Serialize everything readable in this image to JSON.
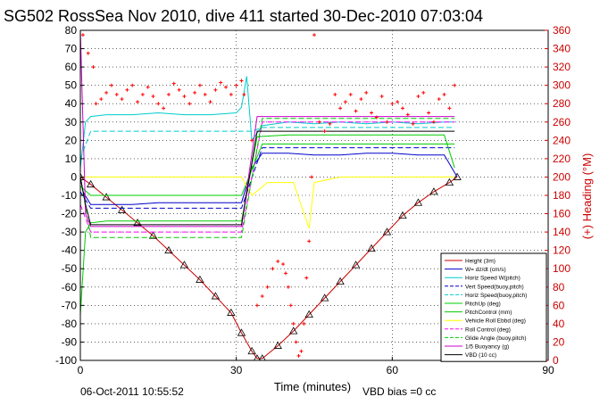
{
  "chart_data": {
    "type": "line",
    "title": "SG502 RossSea Nov 2010, dive 411 started 30-Dec-2010 07:03:04",
    "xlabel": "Time (minutes)",
    "ylabel_right": "(+) Heading (°M)",
    "xlim": [
      0,
      90
    ],
    "ylim": [
      -100,
      80
    ],
    "ylim_right": [
      0,
      360
    ],
    "x_ticks": [
      0,
      30,
      60,
      90
    ],
    "y_ticks": [
      -100,
      -90,
      -80,
      -70,
      -60,
      -50,
      -40,
      -30,
      -20,
      -10,
      0,
      10,
      20,
      30,
      40,
      50,
      60,
      70,
      80
    ],
    "y_ticks_right": [
      0,
      20,
      40,
      60,
      80,
      100,
      120,
      140,
      160,
      180,
      200,
      220,
      240,
      260,
      280,
      300,
      320,
      340,
      360
    ],
    "grid": true,
    "legend_position": "bottom-right",
    "footer_left": "06-Oct-2011 10:55:52",
    "footer_right": "VBD bias =0 cc",
    "series": [
      {
        "name": "Height (3m)",
        "color": "#cc0000",
        "style": "solid-triangle-markers",
        "x": [
          0,
          2,
          5,
          8,
          11,
          14,
          17,
          20,
          23,
          26,
          29,
          31,
          33,
          34,
          35,
          38,
          41,
          44,
          47,
          50,
          53,
          56,
          59,
          62,
          65,
          68,
          71,
          72.5
        ],
        "values": [
          0,
          -4,
          -11,
          -18,
          -25,
          -32,
          -40,
          -48,
          -56,
          -65,
          -74,
          -85,
          -95,
          -99,
          -99,
          -92,
          -84,
          -75,
          -66,
          -57,
          -48,
          -39,
          -30,
          -21,
          -14,
          -8,
          -3,
          0
        ]
      },
      {
        "name": "W= dz/dt (cm/s)",
        "color": "#0000cc",
        "style": "solid",
        "x": [
          0,
          0.5,
          2,
          5,
          10,
          15,
          20,
          25,
          31,
          33,
          35,
          40,
          45,
          50,
          55,
          60,
          65,
          70,
          72.5
        ],
        "values": [
          0,
          -8,
          -15,
          -15,
          -15,
          -14,
          -14,
          -14,
          -14,
          5,
          13,
          13,
          12,
          12,
          13,
          13,
          12,
          12,
          0
        ]
      },
      {
        "name": "Horiz Speed W(pitch)",
        "color": "#00cccc",
        "style": "solid",
        "x": [
          0,
          1,
          2,
          5,
          10,
          15,
          20,
          25,
          30,
          31,
          32,
          33,
          35,
          40,
          45,
          50,
          55,
          60,
          65,
          70,
          72
        ],
        "values": [
          5,
          30,
          33,
          34,
          34,
          35,
          34,
          34,
          35,
          38,
          55,
          20,
          28,
          30,
          29,
          30,
          29,
          30,
          29,
          30,
          30
        ]
      },
      {
        "name": "Vert Speed(buoy,pitch)",
        "color": "#0000cc",
        "style": "dashed",
        "x": [
          0,
          2,
          10,
          20,
          31,
          35,
          45,
          55,
          65,
          72
        ],
        "values": [
          -8,
          -17,
          -17,
          -17,
          -17,
          16,
          16,
          16,
          16,
          16
        ]
      },
      {
        "name": "Horiz Speed(buoy,pitch)",
        "color": "#00cccc",
        "style": "dashed",
        "x": [
          0,
          2,
          10,
          20,
          31,
          33,
          35,
          45,
          55,
          65,
          72
        ],
        "values": [
          10,
          25,
          25,
          25,
          25,
          25,
          27,
          27,
          27,
          27,
          27
        ]
      },
      {
        "name": "PitchUp (deg)",
        "color": "#00cc00",
        "style": "solid",
        "x": [
          0,
          1,
          2,
          5,
          10,
          20,
          31,
          34,
          40,
          50,
          60,
          70,
          72
        ],
        "values": [
          -75,
          -30,
          -25,
          -24,
          -24,
          -24,
          -24,
          22,
          23,
          23,
          23,
          23,
          5
        ]
      },
      {
        "name": "PitchControl (mm)",
        "color": "#00cc00",
        "style": "solid",
        "x": [
          0,
          2,
          10,
          20,
          31,
          35,
          45,
          55,
          65,
          72
        ],
        "values": [
          -5,
          -10,
          -10,
          -10,
          -10,
          18,
          18,
          18,
          18,
          18
        ]
      },
      {
        "name": "Vehicle Roll Ebbd (deg)",
        "color": "#ffff00",
        "style": "solid",
        "x": [
          0,
          2,
          10,
          20,
          31,
          33,
          36,
          41,
          44,
          45,
          50,
          55,
          60,
          65,
          70,
          72
        ],
        "values": [
          0,
          0,
          0,
          0,
          0,
          -10,
          -3,
          -3,
          -28,
          -3,
          0,
          0,
          0,
          0,
          0,
          0
        ]
      },
      {
        "name": "Roll Control (deg)",
        "color": "#ff00ff",
        "style": "dashed",
        "x": [
          0,
          2,
          10,
          20,
          31,
          35,
          45,
          55,
          65,
          72
        ],
        "values": [
          -15,
          -30,
          -30,
          -30,
          -30,
          30,
          30,
          30,
          30,
          30
        ]
      },
      {
        "name": "Glide Angle (buoy,pitch)",
        "color": "#00cc00",
        "style": "dashed",
        "x": [
          0,
          2,
          10,
          20,
          31,
          35,
          45,
          55,
          65,
          72
        ],
        "values": [
          0,
          -33,
          -33,
          -33,
          -33,
          32,
          32,
          32,
          32,
          32
        ]
      },
      {
        "name": "1/5 Buoyancy (g)",
        "color": "#cc00cc",
        "style": "solid",
        "x": [
          0,
          1,
          2,
          10,
          20,
          31,
          34,
          45,
          55,
          65,
          72
        ],
        "values": [
          80,
          -20,
          -27,
          -27,
          -27,
          -27,
          33,
          33,
          33,
          33,
          33
        ]
      },
      {
        "name": "VBD (10 cc)",
        "color": "#000000",
        "style": "solid",
        "x": [
          0,
          1,
          2,
          10,
          20,
          31,
          34,
          45,
          55,
          65,
          72
        ],
        "values": [
          0,
          -15,
          -26,
          -26,
          -26,
          -26,
          25,
          25,
          25,
          25,
          25
        ]
      },
      {
        "name": "Heading",
        "axis": "right",
        "color": "#ff0000",
        "style": "plus-markers",
        "legend": false,
        "x": [
          0.5,
          1.5,
          2.5,
          3,
          4,
          5,
          6,
          7,
          8,
          9,
          10,
          11,
          12,
          13,
          14,
          15,
          16,
          17,
          18,
          19,
          20,
          21,
          22,
          23,
          24,
          25,
          26,
          27,
          28,
          29,
          30,
          31,
          31.5,
          33,
          34,
          35,
          36,
          37,
          38,
          39,
          39.5,
          40,
          40.5,
          41,
          41.5,
          42,
          42.5,
          43,
          43.5,
          44,
          44.5,
          45,
          46,
          47,
          48,
          49,
          50,
          51,
          52,
          53,
          54,
          55,
          56,
          57,
          58,
          59,
          60,
          61,
          62,
          63,
          64,
          65,
          66,
          67,
          68,
          69,
          70,
          71,
          72
        ],
        "values": [
          355,
          335,
          320,
          280,
          285,
          292,
          300,
          290,
          285,
          295,
          300,
          282,
          290,
          298,
          288,
          280,
          275,
          290,
          302,
          295,
          288,
          280,
          292,
          300,
          290,
          282,
          295,
          303,
          298,
          290,
          300,
          305,
          290,
          240,
          60,
          70,
          80,
          100,
          108,
          105,
          95,
          80,
          60,
          40,
          20,
          5,
          10,
          40,
          90,
          130,
          200,
          355,
          260,
          250,
          258,
          290,
          275,
          282,
          290,
          272,
          285,
          292,
          270,
          265,
          288,
          260,
          280,
          282,
          275,
          268,
          258,
          288,
          292,
          270,
          260,
          285,
          290,
          275,
          300
        ]
      }
    ]
  }
}
